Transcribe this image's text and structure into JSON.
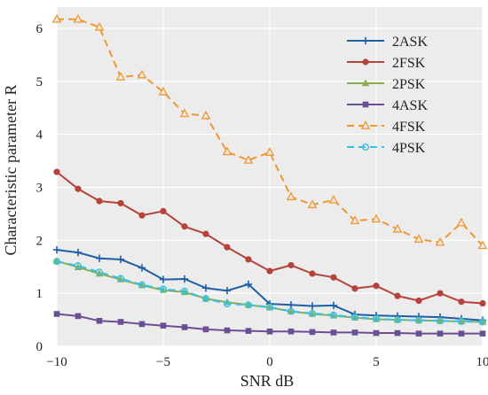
{
  "chart_data": {
    "type": "line",
    "title": "",
    "xlabel": "SNR  dB",
    "ylabel": "Characteristic parameter  R",
    "xlim": [
      -10,
      10
    ],
    "ylim": [
      0,
      6.4
    ],
    "x_ticks": [
      -10,
      -5,
      0,
      5,
      10
    ],
    "y_ticks": [
      0,
      1,
      2,
      3,
      4,
      5,
      6
    ],
    "grid": true,
    "legend_position": "top-right",
    "background_color": "#ececec",
    "x": [
      -10,
      -9,
      -8,
      -7,
      -6,
      -5,
      -4,
      -3,
      -2,
      -1,
      0,
      1,
      2,
      3,
      4,
      5,
      6,
      7,
      8,
      9,
      10
    ],
    "series": [
      {
        "name": "2ASK",
        "color": "#1f5fa6",
        "marker": "plus",
        "dashed": false,
        "values": [
          1.82,
          1.77,
          1.66,
          1.64,
          1.48,
          1.26,
          1.27,
          1.1,
          1.05,
          1.17,
          0.8,
          0.78,
          0.76,
          0.77,
          0.6,
          0.58,
          0.57,
          0.56,
          0.55,
          0.52,
          0.49
        ]
      },
      {
        "name": "2FSK",
        "color": "#b5433a",
        "marker": "circle",
        "dashed": false,
        "values": [
          3.29,
          2.97,
          2.74,
          2.7,
          2.47,
          2.55,
          2.26,
          2.12,
          1.87,
          1.64,
          1.42,
          1.53,
          1.37,
          1.3,
          1.09,
          1.14,
          0.95,
          0.86,
          1.0,
          0.84,
          0.81
        ]
      },
      {
        "name": "2PSK",
        "color": "#8aaf50",
        "marker": "triangle",
        "dashed": false,
        "values": [
          1.61,
          1.49,
          1.37,
          1.26,
          1.15,
          1.06,
          1.02,
          0.9,
          0.83,
          0.78,
          0.73,
          0.66,
          0.61,
          0.58,
          0.54,
          0.51,
          0.5,
          0.49,
          0.48,
          0.47,
          0.46
        ]
      },
      {
        "name": "4ASK",
        "color": "#6b4f94",
        "marker": "square",
        "dashed": false,
        "values": [
          0.61,
          0.57,
          0.48,
          0.46,
          0.42,
          0.39,
          0.36,
          0.32,
          0.3,
          0.29,
          0.28,
          0.28,
          0.27,
          0.26,
          0.26,
          0.25,
          0.25,
          0.24,
          0.24,
          0.24,
          0.24
        ]
      },
      {
        "name": "4FSK",
        "color": "#f2962e",
        "marker": "triangle-open",
        "dashed": true,
        "values": [
          6.17,
          6.17,
          6.02,
          5.08,
          5.12,
          4.8,
          4.39,
          4.35,
          3.67,
          3.51,
          3.66,
          2.82,
          2.67,
          2.76,
          2.37,
          2.4,
          2.21,
          2.02,
          1.96,
          2.33,
          1.9
        ]
      },
      {
        "name": "4PSK",
        "color": "#36c1e8",
        "marker": "circle-open",
        "dashed": true,
        "values": [
          1.6,
          1.52,
          1.4,
          1.28,
          1.16,
          1.08,
          1.04,
          0.9,
          0.8,
          0.78,
          0.74,
          0.66,
          0.62,
          0.59,
          0.55,
          0.52,
          0.5,
          0.49,
          0.48,
          0.47,
          0.46
        ]
      }
    ]
  }
}
